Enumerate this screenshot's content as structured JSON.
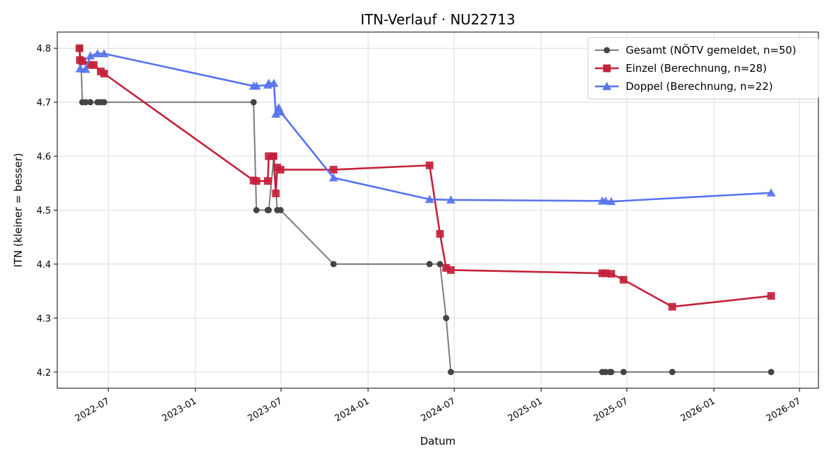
{
  "chart_data": {
    "type": "line",
    "title": "ITN-Verlauf · NU22713",
    "xlabel": "Datum",
    "ylabel": "ITN  (kleiner = besser)",
    "xlim": [
      "2022-03-15",
      "2026-08-10"
    ],
    "ylim": [
      4.17,
      4.83
    ],
    "yticks": [
      4.2,
      4.3,
      4.4,
      4.5,
      4.6,
      4.7,
      4.8
    ],
    "xticks": [
      "2022-07-01",
      "2023-01-01",
      "2023-07-01",
      "2024-01-01",
      "2024-07-01",
      "2025-01-01",
      "2025-07-01",
      "2026-01-01",
      "2026-07-01"
    ],
    "xtick_labels": [
      "2022-07",
      "2023-01",
      "2023-07",
      "2024-01",
      "2024-07",
      "2025-01",
      "2025-07",
      "2026-01",
      "2026-07"
    ],
    "grid": true,
    "legend_position": "top-right",
    "series": [
      {
        "name": "Gesamt (NÖTV gemeldet, n=50)",
        "color": "#444444",
        "marker": "circle",
        "points": [
          [
            "2022-05-01",
            4.8
          ],
          [
            "2022-05-04",
            4.78
          ],
          [
            "2022-05-07",
            4.7
          ],
          [
            "2022-05-14",
            4.7
          ],
          [
            "2022-05-24",
            4.7
          ],
          [
            "2022-06-08",
            4.7
          ],
          [
            "2022-06-15",
            4.7
          ],
          [
            "2022-06-22",
            4.7
          ],
          [
            "2023-05-04",
            4.7
          ],
          [
            "2023-05-10",
            4.5
          ],
          [
            "2023-06-03",
            4.5
          ],
          [
            "2023-06-05",
            4.5
          ],
          [
            "2023-06-16",
            4.6
          ],
          [
            "2023-06-23",
            4.5
          ],
          [
            "2023-06-30",
            4.5
          ],
          [
            "2023-10-20",
            4.4
          ],
          [
            "2024-05-10",
            4.4
          ],
          [
            "2024-06-01",
            4.4
          ],
          [
            "2024-06-14",
            4.3
          ],
          [
            "2024-06-24",
            4.2
          ],
          [
            "2025-05-10",
            4.2
          ],
          [
            "2025-05-17",
            4.2
          ],
          [
            "2025-05-26",
            4.2
          ],
          [
            "2025-05-29",
            4.2
          ],
          [
            "2025-06-24",
            4.2
          ],
          [
            "2025-10-05",
            4.2
          ],
          [
            "2026-05-02",
            4.2
          ]
        ]
      },
      {
        "name": "Einzel (Berechnung, n=28)",
        "color": "#c4213b",
        "marker": "square",
        "points": [
          [
            "2022-05-01",
            4.8
          ],
          [
            "2022-05-02",
            4.778
          ],
          [
            "2022-05-07",
            4.776
          ],
          [
            "2022-05-24",
            4.769
          ],
          [
            "2022-05-31",
            4.769
          ],
          [
            "2022-06-15",
            4.757
          ],
          [
            "2022-06-22",
            4.753
          ],
          [
            "2023-05-04",
            4.555
          ],
          [
            "2023-05-10",
            4.554
          ],
          [
            "2023-06-03",
            4.554
          ],
          [
            "2023-06-05",
            4.6
          ],
          [
            "2023-06-15",
            4.6
          ],
          [
            "2023-06-20",
            4.531
          ],
          [
            "2023-06-23",
            4.579
          ],
          [
            "2023-06-30",
            4.575
          ],
          [
            "2023-10-20",
            4.575
          ],
          [
            "2024-05-10",
            4.583
          ],
          [
            "2024-06-01",
            4.456
          ],
          [
            "2024-06-14",
            4.393
          ],
          [
            "2024-06-24",
            4.389
          ],
          [
            "2025-05-10",
            4.383
          ],
          [
            "2025-05-17",
            4.383
          ],
          [
            "2025-05-29",
            4.382
          ],
          [
            "2025-06-24",
            4.371
          ],
          [
            "2025-10-05",
            4.321
          ],
          [
            "2026-05-02",
            4.341
          ]
        ]
      },
      {
        "name": "Doppel (Berechnung, n=22)",
        "color": "#5673ef",
        "marker": "triangle",
        "points": [
          [
            "2022-05-02",
            4.762
          ],
          [
            "2022-05-14",
            4.761
          ],
          [
            "2022-05-24",
            4.786
          ],
          [
            "2022-06-08",
            4.79
          ],
          [
            "2022-06-22",
            4.79
          ],
          [
            "2023-05-04",
            4.73
          ],
          [
            "2023-05-10",
            4.73
          ],
          [
            "2023-06-03",
            4.732
          ],
          [
            "2023-06-05",
            4.735
          ],
          [
            "2023-06-16",
            4.735
          ],
          [
            "2023-06-20",
            4.678
          ],
          [
            "2023-06-26",
            4.69
          ],
          [
            "2023-06-30",
            4.682
          ],
          [
            "2023-10-20",
            4.56
          ],
          [
            "2024-05-10",
            4.52
          ],
          [
            "2024-06-24",
            4.519
          ],
          [
            "2025-05-10",
            4.517
          ],
          [
            "2025-05-17",
            4.517
          ],
          [
            "2025-05-29",
            4.516
          ],
          [
            "2026-05-02",
            4.532
          ]
        ]
      }
    ]
  }
}
